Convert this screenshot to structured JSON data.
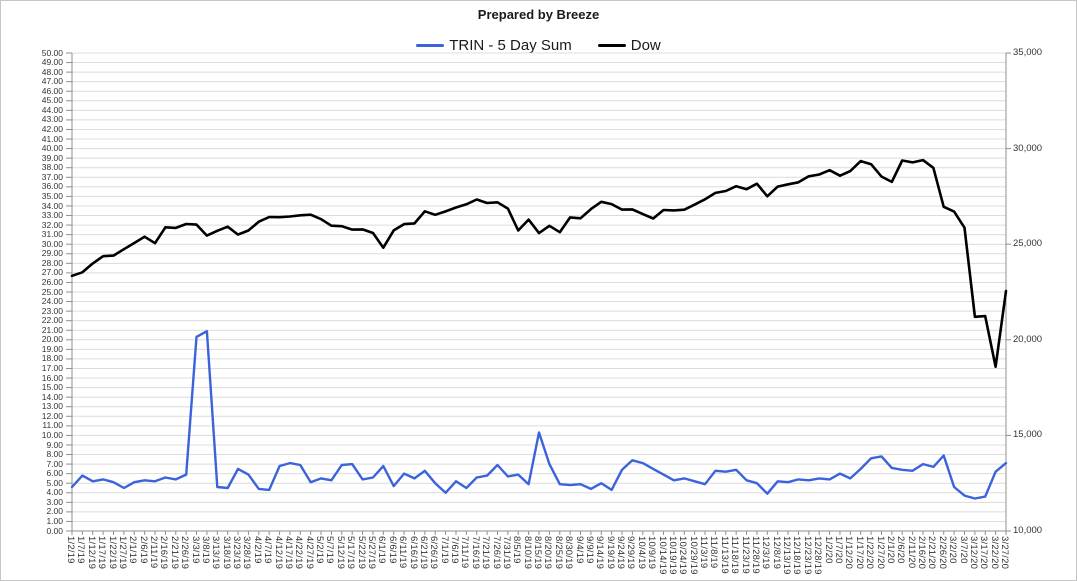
{
  "title": "Prepared by Breeze",
  "legend": {
    "items": [
      {
        "label": "TRIN - 5 Day Sum",
        "color": "#3A63DC"
      },
      {
        "label": "Dow",
        "color": "#000000"
      }
    ]
  },
  "colors": {
    "background": "#ffffff",
    "border": "#c6c6c6",
    "grid": "#dcdcdc",
    "axis": "#8f8f8f",
    "title_text": "#1a1a1a",
    "tick_text": "#333333",
    "trin_line": "#3A63DC",
    "dow_line": "#000000"
  },
  "chart_data": {
    "type": "line",
    "title": "Prepared by Breeze",
    "legend_position": "top-center",
    "grid": "horizontal",
    "x_labels": [
      "1/2/19",
      "1/7/19",
      "1/12/19",
      "1/17/19",
      "1/22/19",
      "1/27/19",
      "2/1/19",
      "2/6/19",
      "2/11/19",
      "2/16/19",
      "2/21/19",
      "2/26/19",
      "3/3/19",
      "3/8/19",
      "3/13/19",
      "3/18/19",
      "3/23/19",
      "3/28/19",
      "4/2/19",
      "4/7/19",
      "4/12/19",
      "4/17/19",
      "4/22/19",
      "4/27/19",
      "5/2/19",
      "5/7/19",
      "5/12/19",
      "5/17/19",
      "5/22/19",
      "5/27/19",
      "6/1/19",
      "6/6/19",
      "6/11/19",
      "6/16/19",
      "6/21/19",
      "6/26/19",
      "7/1/19",
      "7/6/19",
      "7/11/19",
      "7/16/19",
      "7/21/19",
      "7/26/19",
      "7/31/19",
      "8/5/19",
      "8/10/19",
      "8/15/19",
      "8/20/19",
      "8/25/19",
      "8/30/19",
      "9/4/19",
      "9/9/19",
      "9/14/19",
      "9/19/19",
      "9/24/19",
      "9/29/19",
      "10/4/19",
      "10/9/19",
      "10/14/19",
      "10/19/19",
      "10/24/19",
      "10/29/19",
      "11/3/19",
      "11/8/19",
      "11/13/19",
      "11/18/19",
      "11/23/19",
      "11/28/19",
      "12/3/19",
      "12/8/19",
      "12/13/19",
      "12/18/19",
      "12/23/19",
      "12/28/19",
      "1/2/20",
      "1/7/20",
      "1/12/20",
      "1/17/20",
      "1/22/20",
      "1/27/20",
      "2/1/20",
      "2/6/20",
      "2/11/20",
      "2/16/20",
      "2/21/20",
      "2/26/20",
      "3/2/20",
      "3/7/20",
      "3/12/20",
      "3/17/20",
      "3/22/20",
      "3/27/20"
    ],
    "left_axis": {
      "min": 0,
      "max": 50,
      "step": 1,
      "tick_labels": [
        "50.00",
        "49.00",
        "48.00",
        "47.00",
        "46.00",
        "45.00",
        "44.00",
        "43.00",
        "42.00",
        "41.00",
        "40.00",
        "39.00",
        "38.00",
        "37.00",
        "36.00",
        "35.00",
        "34.00",
        "33.00",
        "32.00",
        "31.00",
        "30.00",
        "29.00",
        "28.00",
        "27.00",
        "26.00",
        "25.00",
        "24.00",
        "23.00",
        "22.00",
        "21.00",
        "20.00",
        "19.00",
        "18.00",
        "17.00",
        "16.00",
        "15.00",
        "14.00",
        "13.00",
        "12.00",
        "11.00",
        "10.00",
        "9.00",
        "8.00",
        "7.00",
        "6.00",
        "5.00",
        "4.00",
        "3.00",
        "2.00",
        "1.00",
        "0.00"
      ]
    },
    "right_axis": {
      "min": 10000,
      "max": 35000,
      "step": 5000,
      "tick_labels": [
        "35,000",
        "30,000",
        "25,000",
        "20,000",
        "15,000",
        "10,000"
      ]
    },
    "series": [
      {
        "name": "TRIN - 5 Day Sum",
        "axis": "left",
        "color": "#3A63DC",
        "values": [
          4.6,
          5.8,
          5.2,
          5.4,
          5.1,
          4.5,
          5.1,
          5.3,
          5.2,
          5.6,
          5.4,
          5.9,
          20.3,
          20.9,
          4.6,
          4.5,
          6.5,
          5.9,
          4.4,
          4.3,
          6.8,
          7.1,
          6.9,
          5.1,
          5.5,
          5.3,
          6.9,
          7.0,
          5.4,
          5.6,
          6.8,
          4.7,
          6.0,
          5.5,
          6.3,
          5.0,
          4.0,
          5.2,
          4.5,
          5.6,
          5.8,
          6.9,
          5.7,
          5.9,
          4.9,
          10.3,
          7.0,
          4.9,
          4.8,
          4.9,
          4.4,
          5.0,
          4.3,
          6.4,
          7.4,
          7.1,
          6.5,
          5.9,
          5.3,
          5.5,
          5.2,
          4.9,
          6.3,
          6.2,
          6.4,
          5.3,
          5.0,
          3.9,
          5.2,
          5.1,
          5.4,
          5.3,
          5.5,
          5.4,
          6.0,
          5.5,
          6.5,
          7.6,
          7.8,
          6.6,
          6.4,
          6.3,
          7.0,
          6.7,
          7.9,
          4.6,
          3.7,
          3.4,
          3.6,
          6.2,
          7.1
        ]
      },
      {
        "name": "Dow",
        "axis": "right",
        "color": "#000000",
        "values": [
          23346,
          23531,
          23996,
          24370,
          24404,
          24737,
          25064,
          25390,
          25053,
          25883,
          25850,
          26058,
          26026,
          25450,
          25703,
          25914,
          25502,
          25717,
          26179,
          26425,
          26412,
          26449,
          26511,
          26543,
          26307,
          25965,
          25942,
          25764,
          25776,
          25586,
          24815,
          25720,
          26049,
          26090,
          26719,
          26536,
          26717,
          26922,
          27088,
          27336,
          27154,
          27192,
          26864,
          25718,
          26287,
          25579,
          25962,
          25629,
          26403,
          26355,
          26835,
          27219,
          27095,
          26808,
          26820,
          26574,
          26346,
          26787,
          26770,
          26805,
          27071,
          27347,
          27681,
          27784,
          28036,
          27876,
          28164,
          27503,
          28015,
          28135,
          28239,
          28551,
          28645,
          28869,
          28584,
          28824,
          29348,
          29186,
          28536,
          28256,
          29380,
          29276,
          29398,
          28992,
          26958,
          26703,
          25865,
          21201,
          21237,
          18592,
          22552
        ]
      }
    ]
  }
}
